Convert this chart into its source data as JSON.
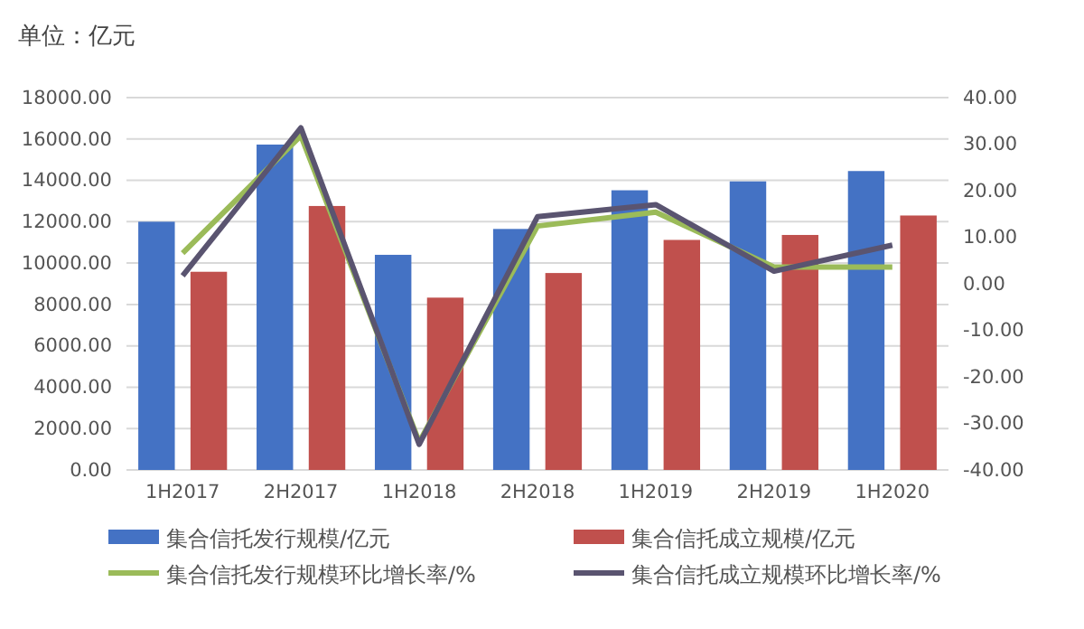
{
  "chart_data": {
    "type": "bar",
    "title": "单位：亿元",
    "categories": [
      "1H2017",
      "2H2017",
      "1H2018",
      "2H2018",
      "1H2019",
      "2H2019",
      "1H2020"
    ],
    "series": [
      {
        "name": "集合信托发行规模/亿元",
        "color": "#4472c4",
        "values": [
          12000,
          15730,
          10400,
          11650,
          13520,
          13950,
          14450
        ]
      },
      {
        "name": "集合信托成立规模/亿元",
        "color": "#c0504d",
        "values": [
          9580,
          12760,
          8330,
          9520,
          11120,
          11360,
          12300
        ]
      },
      {
        "name": "集合信托发行规模环比增长率/%",
        "type": "line",
        "axis": "y2",
        "color": "#9bbb59",
        "values": [
          6.6,
          31.8,
          -34.0,
          12.4,
          15.4,
          3.6,
          3.6
        ]
      },
      {
        "name": "集合信托成立规模环比增长率/%",
        "type": "line",
        "axis": "y2",
        "color": "#5a5470",
        "values": [
          1.7,
          33.5,
          -34.5,
          14.4,
          17.0,
          2.7,
          8.3
        ]
      }
    ],
    "ylim": [
      0,
      18000
    ],
    "yticks": [
      {
        "value": 0,
        "label": "0.00"
      },
      {
        "value": 2000,
        "label": "2000.00"
      },
      {
        "value": 4000,
        "label": "4000.00"
      },
      {
        "value": 6000,
        "label": "6000.00"
      },
      {
        "value": 8000,
        "label": "8000.00"
      },
      {
        "value": 10000,
        "label": "10000.00"
      },
      {
        "value": 12000,
        "label": "12000.00"
      },
      {
        "value": 14000,
        "label": "14000.00"
      },
      {
        "value": 16000,
        "label": "16000.00"
      },
      {
        "value": 18000,
        "label": "18000.00"
      }
    ],
    "y2lim": [
      -40,
      40
    ],
    "y2ticks": [
      {
        "value": -40,
        "label": "-40.00"
      },
      {
        "value": -30,
        "label": "-30.00"
      },
      {
        "value": -20,
        "label": "-20.00"
      },
      {
        "value": -10,
        "label": "-10.00"
      },
      {
        "value": 0,
        "label": "0.00"
      },
      {
        "value": 10,
        "label": "10.00"
      },
      {
        "value": 20,
        "label": "20.00"
      },
      {
        "value": 30,
        "label": "30.00"
      },
      {
        "value": 40,
        "label": "40.00"
      }
    ],
    "grid": "y",
    "legend": "bottom",
    "line_style": "solid"
  }
}
